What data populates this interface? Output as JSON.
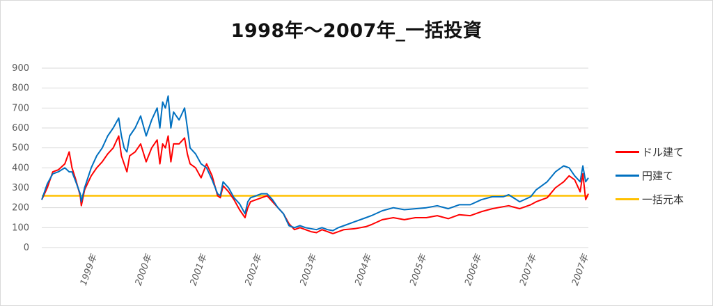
{
  "chart_data": {
    "type": "line",
    "title": "1998年～2007年_一括投資",
    "xlabel": "",
    "ylabel": "",
    "ylim": [
      0,
      900
    ],
    "yticks": [
      0,
      100,
      200,
      300,
      400,
      500,
      600,
      700,
      800,
      900
    ],
    "xlim": [
      1998.0,
      2007.95
    ],
    "xticks": [
      {
        "label": "1999年",
        "x": 1999
      },
      {
        "label": "2000年",
        "x": 2000
      },
      {
        "label": "2001年",
        "x": 2001
      },
      {
        "label": "2002年",
        "x": 2002
      },
      {
        "label": "2003年",
        "x": 2003
      },
      {
        "label": "2004年",
        "x": 2004
      },
      {
        "label": "2005年",
        "x": 2005
      },
      {
        "label": "2006年",
        "x": 2006
      },
      {
        "label": "2007年",
        "x": 2007
      },
      {
        "label": "2007年",
        "x": 2007.95
      }
    ],
    "grid": true,
    "legend": "right",
    "series": [
      {
        "name": "ドル建て",
        "color": "#ff0000",
        "x": [
          1998.0,
          1998.1,
          1998.2,
          1998.3,
          1998.42,
          1998.5,
          1998.55,
          1998.62,
          1998.7,
          1998.72,
          1998.78,
          1998.9,
          1999.0,
          1999.1,
          1999.2,
          1999.3,
          1999.4,
          1999.45,
          1999.5,
          1999.55,
          1999.6,
          1999.7,
          1999.8,
          1999.9,
          2000.0,
          2000.1,
          2000.15,
          2000.2,
          2000.25,
          2000.3,
          2000.35,
          2000.4,
          2000.5,
          2000.6,
          2000.65,
          2000.7,
          2000.8,
          2000.9,
          2001.0,
          2001.1,
          2001.2,
          2001.25,
          2001.3,
          2001.4,
          2001.5,
          2001.6,
          2001.7,
          2001.75,
          2001.8,
          2001.9,
          2002.0,
          2002.1,
          2002.2,
          2002.3,
          2002.4,
          2002.5,
          2002.6,
          2002.7,
          2002.8,
          2002.9,
          2003.0,
          2003.1,
          2003.2,
          2003.3,
          2003.4,
          2003.5,
          2003.7,
          2003.9,
          2004.0,
          2004.2,
          2004.4,
          2004.6,
          2004.8,
          2005.0,
          2005.2,
          2005.4,
          2005.6,
          2005.8,
          2006.0,
          2006.2,
          2006.4,
          2006.5,
          2006.7,
          2006.9,
          2007.0,
          2007.2,
          2007.35,
          2007.5,
          2007.6,
          2007.7,
          2007.8,
          2007.85,
          2007.9,
          2007.95
        ],
        "y": [
          240,
          300,
          380,
          390,
          420,
          480,
          400,
          340,
          260,
          210,
          290,
          360,
          400,
          430,
          470,
          500,
          560,
          460,
          420,
          380,
          460,
          480,
          520,
          430,
          500,
          540,
          420,
          520,
          500,
          560,
          430,
          520,
          520,
          550,
          470,
          420,
          400,
          350,
          420,
          360,
          260,
          250,
          310,
          280,
          240,
          190,
          150,
          200,
          230,
          240,
          250,
          260,
          230,
          200,
          170,
          120,
          90,
          100,
          90,
          80,
          75,
          90,
          80,
          70,
          80,
          90,
          95,
          105,
          115,
          140,
          150,
          140,
          150,
          150,
          160,
          145,
          165,
          160,
          180,
          195,
          205,
          210,
          195,
          215,
          230,
          250,
          300,
          330,
          360,
          340,
          280,
          370,
          240,
          270
        ]
      },
      {
        "name": "円建て",
        "color": "#0070c0",
        "x": [
          1998.0,
          1998.1,
          1998.2,
          1998.3,
          1998.42,
          1998.5,
          1998.55,
          1998.62,
          1998.7,
          1998.72,
          1998.78,
          1998.9,
          1999.0,
          1999.1,
          1999.2,
          1999.3,
          1999.4,
          1999.45,
          1999.5,
          1999.55,
          1999.6,
          1999.7,
          1999.8,
          1999.9,
          2000.0,
          2000.1,
          2000.15,
          2000.2,
          2000.25,
          2000.3,
          2000.35,
          2000.4,
          2000.5,
          2000.6,
          2000.65,
          2000.7,
          2000.8,
          2000.9,
          2001.0,
          2001.1,
          2001.2,
          2001.25,
          2001.3,
          2001.4,
          2001.5,
          2001.6,
          2001.7,
          2001.75,
          2001.8,
          2001.9,
          2002.0,
          2002.1,
          2002.2,
          2002.3,
          2002.4,
          2002.5,
          2002.6,
          2002.7,
          2002.8,
          2002.9,
          2003.0,
          2003.1,
          2003.2,
          2003.3,
          2003.4,
          2003.5,
          2003.7,
          2003.9,
          2004.0,
          2004.2,
          2004.4,
          2004.6,
          2004.8,
          2005.0,
          2005.2,
          2005.4,
          2005.6,
          2005.8,
          2006.0,
          2006.2,
          2006.4,
          2006.5,
          2006.7,
          2006.9,
          2007.0,
          2007.2,
          2007.35,
          2007.5,
          2007.6,
          2007.7,
          2007.8,
          2007.85,
          2007.9,
          2007.95
        ],
        "y": [
          240,
          320,
          370,
          380,
          400,
          380,
          380,
          330,
          270,
          230,
          300,
          400,
          460,
          500,
          560,
          600,
          650,
          560,
          500,
          480,
          560,
          600,
          660,
          560,
          640,
          700,
          600,
          730,
          700,
          760,
          600,
          680,
          640,
          700,
          600,
          500,
          470,
          420,
          400,
          340,
          270,
          260,
          330,
          300,
          250,
          220,
          170,
          230,
          250,
          260,
          270,
          270,
          240,
          200,
          170,
          110,
          100,
          110,
          100,
          95,
          90,
          100,
          90,
          85,
          100,
          110,
          130,
          150,
          160,
          185,
          200,
          190,
          195,
          200,
          210,
          195,
          215,
          215,
          240,
          255,
          255,
          265,
          230,
          255,
          290,
          330,
          380,
          410,
          400,
          360,
          330,
          410,
          330,
          350
        ]
      },
      {
        "name": "一括元本",
        "color": "#ffc000",
        "x": [
          1998.0,
          2007.95
        ],
        "y": [
          260,
          260
        ]
      }
    ]
  }
}
